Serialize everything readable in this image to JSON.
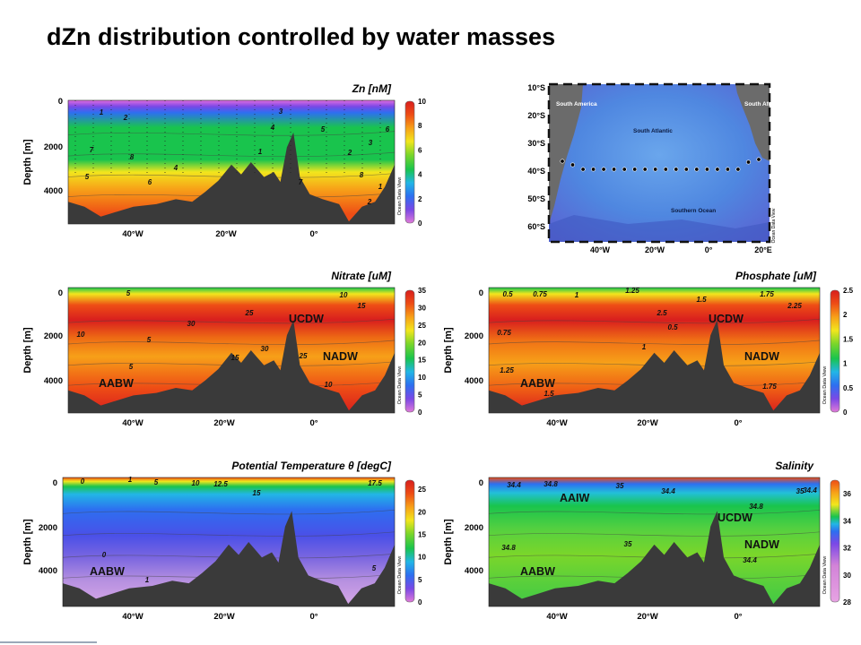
{
  "slide": {
    "title": "dZn distribution controlled by water masses"
  },
  "chart_data": [
    {
      "type": "heatmap",
      "title": "Zn [nM]",
      "xlabel": "",
      "ylabel": "Depth [m]",
      "x_ticks": [
        "40°W",
        "20°W",
        "0°"
      ],
      "y_ticks": [
        "0",
        "2000",
        "4000"
      ],
      "colorbar": {
        "ticks": [
          "0",
          "2",
          "4",
          "6",
          "8",
          "10"
        ],
        "range": [
          0,
          10
        ],
        "credit": "Ocean Data View"
      },
      "contour_labels": [
        "1",
        "2",
        "3",
        "4",
        "5",
        "6",
        "7",
        "8"
      ],
      "water_masses": []
    },
    {
      "type": "heatmap",
      "title": "Nitrate [uM]",
      "xlabel": "",
      "ylabel": "Depth [m]",
      "x_ticks": [
        "40°W",
        "20°W",
        "0°"
      ],
      "y_ticks": [
        "0",
        "2000",
        "4000"
      ],
      "colorbar": {
        "ticks": [
          "0",
          "5",
          "10",
          "15",
          "20",
          "25",
          "30",
          "35"
        ],
        "range": [
          0,
          35
        ],
        "credit": "Ocean Data View"
      },
      "contour_labels": [
        "5",
        "10",
        "15",
        "25",
        "30"
      ],
      "water_masses": [
        "UCDW",
        "NADW",
        "AABW"
      ]
    },
    {
      "type": "heatmap",
      "title": "Phosphate [uM]",
      "xlabel": "",
      "ylabel": "Depth [m]",
      "x_ticks": [
        "40°W",
        "20°W",
        "0°"
      ],
      "y_ticks": [
        "0",
        "2000",
        "4000"
      ],
      "colorbar": {
        "ticks": [
          "0",
          "0.5",
          "1",
          "1.5",
          "2",
          "2.5"
        ],
        "range": [
          0,
          2.5
        ],
        "credit": "Ocean Data View"
      },
      "contour_labels": [
        "0.5",
        "0.75",
        "1",
        "1.25",
        "1.5",
        "1.75",
        "2.25",
        "2.5"
      ],
      "water_masses": [
        "UCDW",
        "NADW",
        "AABW"
      ]
    },
    {
      "type": "heatmap",
      "title": "Potential Temperature θ [degC]",
      "xlabel": "",
      "ylabel": "Depth [m]",
      "x_ticks": [
        "40°W",
        "20°W",
        "0°"
      ],
      "y_ticks": [
        "0",
        "2000",
        "4000"
      ],
      "colorbar": {
        "ticks": [
          "0",
          "5",
          "10",
          "15",
          "20",
          "25"
        ],
        "range": [
          0,
          27
        ],
        "credit": "Ocean Data View"
      },
      "contour_labels": [
        "0",
        "1",
        "5",
        "10",
        "12.5",
        "15",
        "17.5"
      ],
      "water_masses": [
        "AABW"
      ]
    },
    {
      "type": "heatmap",
      "title": "Salinity",
      "xlabel": "",
      "ylabel": "Depth [m]",
      "x_ticks": [
        "40°W",
        "20°W",
        "0°"
      ],
      "y_ticks": [
        "0",
        "2000",
        "4000"
      ],
      "colorbar": {
        "ticks": [
          "28",
          "30",
          "32",
          "34",
          "36"
        ],
        "range": [
          28,
          37
        ],
        "credit": "Ocean Data View"
      },
      "contour_labels": [
        "34.4",
        "34.8",
        "35"
      ],
      "water_masses": [
        "AAIW",
        "UCDW",
        "NADW",
        "AABW"
      ]
    }
  ],
  "map": {
    "lat_ticks": [
      "10°S",
      "20°S",
      "30°S",
      "40°S",
      "50°S",
      "60°S"
    ],
    "lon_ticks": [
      "40°W",
      "20°W",
      "0°",
      "20°E"
    ],
    "labels": {
      "south_america": "South America",
      "south_africa": "South Africa",
      "south_atlantic": "South Atlantic",
      "southern_ocean": "Southern Ocean"
    },
    "credit": "Ocean Data View",
    "station_count": 20
  }
}
